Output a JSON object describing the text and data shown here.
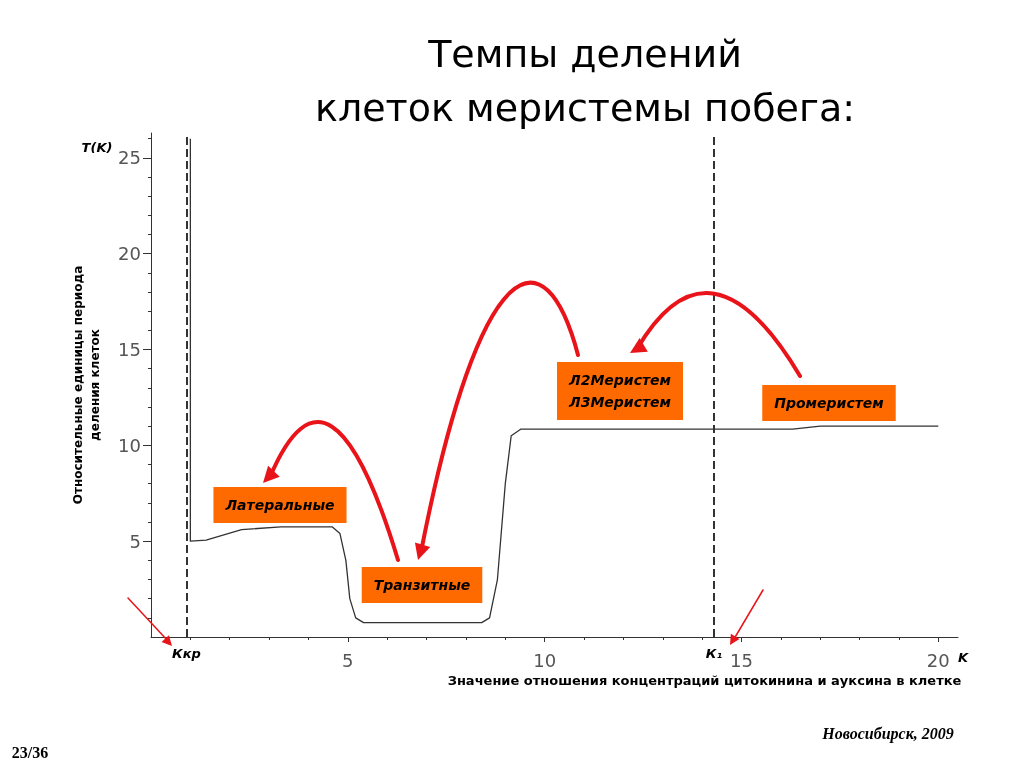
{
  "chart_data": {
    "type": "line",
    "title": "Темпы делений\nклеток меристемы побега:",
    "xlabel": "Значение отношения концентраций цитокинина и ауксина в клетке",
    "ylabel": "Относительные единицы периода\nделения клеток",
    "x": [
      1.0,
      1.0,
      1.4,
      2.3,
      3.3,
      4.6,
      4.8,
      4.95,
      5.05,
      5.2,
      5.4,
      8.4,
      8.6,
      8.8,
      9.0,
      9.15,
      9.4,
      16.3,
      17.0,
      20.0
    ],
    "series": [
      {
        "color": "#333333",
        "values": [
          26,
          5.0,
          5.05,
          5.6,
          5.75,
          5.75,
          5.4,
          4.0,
          2.0,
          1.0,
          0.75,
          0.75,
          1.0,
          3.0,
          8.0,
          10.5,
          10.85,
          10.85,
          11.0,
          11.0
        ]
      }
    ],
    "xlim": [
      0,
      20.5
    ],
    "ylim": [
      0,
      26.3
    ],
    "xticks": [
      5,
      10,
      15,
      20
    ],
    "yticks": [
      5,
      10,
      15,
      20,
      25
    ],
    "ref_lines": [
      {
        "axis": "x",
        "value": 0.9,
        "label": "Ккр",
        "line_style": "dashed",
        "color": "#333333"
      },
      {
        "axis": "x",
        "value": 14.3,
        "label": "К₁",
        "line_style": "dashed",
        "color": "#333333"
      }
    ],
    "annotations": [
      "Латеральные",
      "Транзитные",
      "Л2Меристем\nЛ3Меристем",
      "Промеристем",
      "T(K)",
      "K",
      "Новосибирск, 2009",
      "23/36"
    ],
    "grid": false,
    "marker": "none",
    "line_style": "solid"
  }
}
